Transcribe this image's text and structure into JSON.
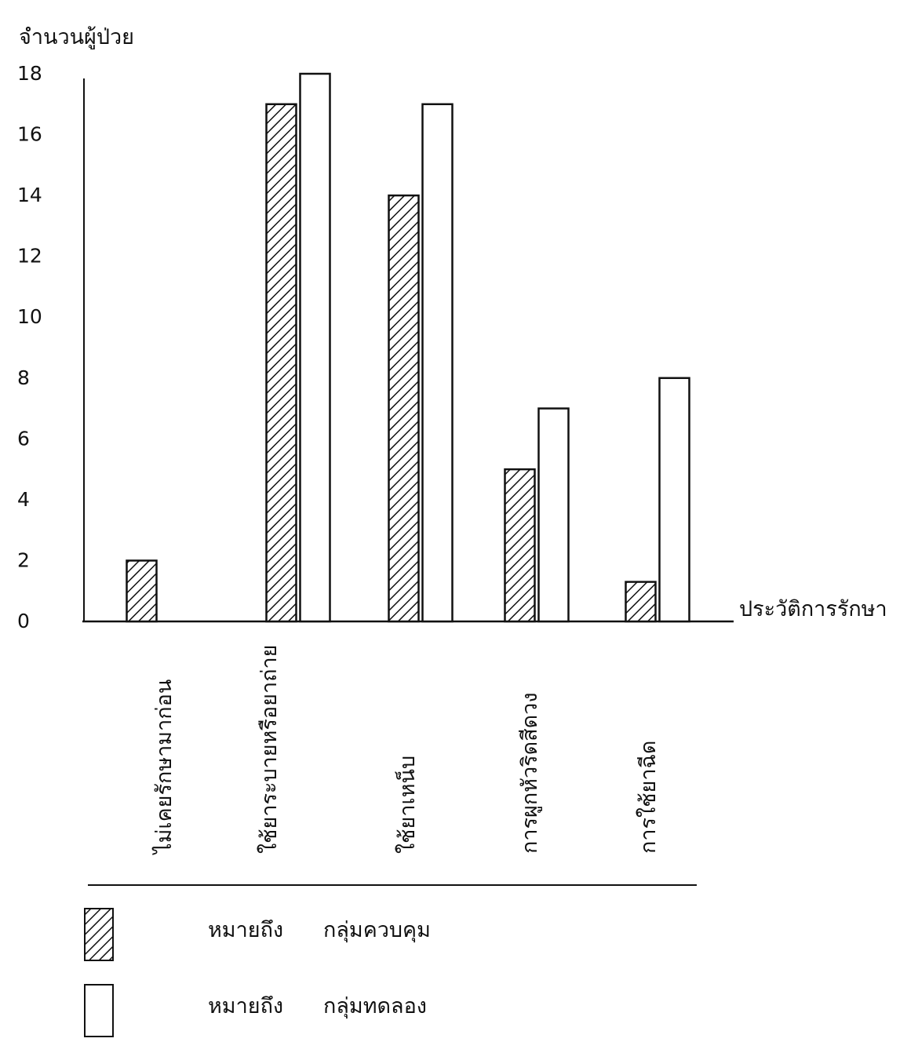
{
  "chart_data": {
    "type": "bar",
    "ylabel": "จำนวนผู้ป่วย",
    "xlabel": "ประวัติการรักษา",
    "ylim": [
      0,
      18
    ],
    "yticks": [
      0,
      2,
      4,
      6,
      8,
      10,
      12,
      14,
      16,
      18
    ],
    "categories": [
      "ไม่เคยรักษามาก่อน",
      "ใช้ยาระบายหรือยาถ่าย",
      "ใช้ยาเหน็บ",
      "การผูกหัวริดสีดวง",
      "การใช้ยาฉีด"
    ],
    "series": [
      {
        "name": "กลุ่มควบคุม",
        "values": [
          2,
          17,
          14,
          5,
          1.3
        ]
      },
      {
        "name": "กลุ่มทดลอง",
        "values": [
          0,
          18,
          17,
          7,
          8
        ]
      }
    ],
    "legend": {
      "position": "bottom-left",
      "prefix": "หมายถึง",
      "items": [
        "กลุ่มควบคุม",
        "กลุ่มทดลอง"
      ]
    },
    "colors": {
      "ink": "#111111",
      "hatch_fill": "#ffffff"
    }
  }
}
